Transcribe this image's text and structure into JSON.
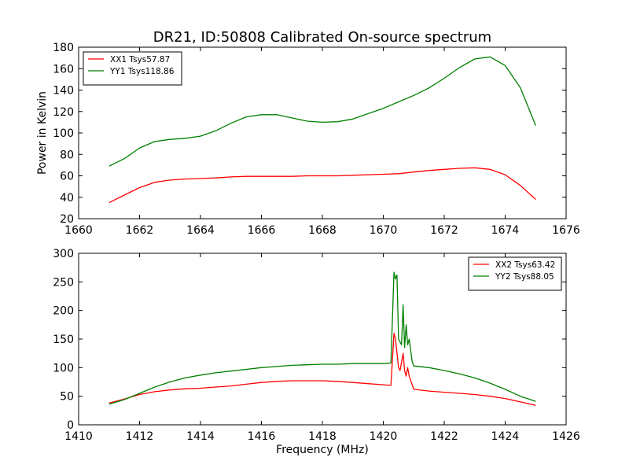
{
  "title": "DR21, ID:50808 Calibrated On-source spectrum",
  "chart_data": [
    {
      "type": "line",
      "xlim": [
        1660,
        1676
      ],
      "ylim": [
        20,
        180
      ],
      "xticks": [
        "1660",
        "1662",
        "1664",
        "1666",
        "1668",
        "1670",
        "1672",
        "1674",
        "1676"
      ],
      "yticks": [
        "20",
        "40",
        "60",
        "80",
        "100",
        "120",
        "140",
        "160",
        "180"
      ],
      "xlabel": "",
      "ylabel": "Power in Kelvin",
      "legend": "top-left",
      "series": [
        {
          "name": "XX1 Tsys57.87",
          "color": "#ff0000",
          "x": [
            1661.0,
            1661.5,
            1662.0,
            1662.5,
            1663.0,
            1663.5,
            1664.0,
            1664.5,
            1665.0,
            1665.5,
            1666.0,
            1666.5,
            1667.0,
            1667.5,
            1668.0,
            1668.5,
            1669.0,
            1669.5,
            1670.0,
            1670.5,
            1671.0,
            1671.5,
            1672.0,
            1672.5,
            1673.0,
            1673.5,
            1674.0,
            1674.5,
            1675.0
          ],
          "y": [
            35,
            42,
            49,
            54,
            56,
            57,
            57.5,
            58,
            59,
            59.5,
            59.5,
            59.5,
            59.5,
            60,
            60,
            60,
            60.5,
            61,
            61.5,
            62,
            63.5,
            65,
            66,
            67,
            67.5,
            66,
            61,
            51,
            38
          ]
        },
        {
          "name": "YY1 Tsys118.86",
          "color": "#008000",
          "x": [
            1661.0,
            1661.5,
            1662.0,
            1662.5,
            1663.0,
            1663.5,
            1664.0,
            1664.5,
            1665.0,
            1665.5,
            1666.0,
            1666.5,
            1667.0,
            1667.5,
            1668.0,
            1668.5,
            1669.0,
            1669.5,
            1670.0,
            1670.5,
            1671.0,
            1671.5,
            1672.0,
            1672.5,
            1673.0,
            1673.5,
            1674.0,
            1674.5,
            1675.0
          ],
          "y": [
            69,
            76,
            86,
            92,
            94,
            95,
            97,
            102,
            109,
            115,
            117,
            117,
            114,
            111,
            110,
            110.5,
            113,
            118,
            123,
            129,
            135,
            142,
            151,
            161,
            169,
            171,
            163,
            142,
            107
          ]
        }
      ]
    },
    {
      "type": "line",
      "xlim": [
        1410,
        1426
      ],
      "ylim": [
        0,
        300
      ],
      "xticks": [
        "1410",
        "1412",
        "1414",
        "1416",
        "1418",
        "1420",
        "1422",
        "1424",
        "1426"
      ],
      "yticks": [
        "0",
        "50",
        "100",
        "150",
        "200",
        "250",
        "300"
      ],
      "xlabel": "Frequency (MHz)",
      "ylabel": "",
      "legend": "top-right",
      "series": [
        {
          "name": "XX2 Tsys63.42",
          "color": "#ff0000",
          "x": [
            1411.0,
            1411.5,
            1412.0,
            1412.5,
            1413.0,
            1413.5,
            1414.0,
            1414.5,
            1415.0,
            1415.5,
            1416.0,
            1416.5,
            1417.0,
            1417.5,
            1418.0,
            1418.5,
            1419.0,
            1419.5,
            1420.0,
            1420.25,
            1420.35,
            1420.4,
            1420.5,
            1420.55,
            1420.65,
            1420.7,
            1420.75,
            1420.8,
            1420.85,
            1420.95,
            1421.0,
            1421.5,
            1422.0,
            1422.5,
            1423.0,
            1423.5,
            1424.0,
            1424.5,
            1425.0
          ],
          "y": [
            38,
            45,
            53,
            58,
            61,
            63,
            64,
            66,
            68,
            71,
            74,
            76,
            77,
            77,
            77,
            76,
            74,
            72,
            70,
            69,
            160,
            150,
            100,
            95,
            125,
            95,
            85,
            100,
            85,
            70,
            62,
            59,
            57,
            55,
            53,
            50,
            46,
            40,
            34
          ]
        },
        {
          "name": "YY2 Tsys88.05",
          "color": "#008000",
          "x": [
            1411.0,
            1411.5,
            1412.0,
            1412.5,
            1413.0,
            1413.5,
            1414.0,
            1414.5,
            1415.0,
            1415.5,
            1416.0,
            1416.5,
            1417.0,
            1417.5,
            1418.0,
            1418.5,
            1419.0,
            1419.5,
            1420.0,
            1420.25,
            1420.35,
            1420.4,
            1420.45,
            1420.5,
            1420.6,
            1420.65,
            1420.7,
            1420.75,
            1420.8,
            1420.85,
            1420.95,
            1421.0,
            1421.5,
            1422.0,
            1422.5,
            1423.0,
            1423.5,
            1424.0,
            1424.5,
            1425.0
          ],
          "y": [
            36,
            44,
            55,
            66,
            75,
            82,
            87,
            91,
            94,
            97,
            100,
            102,
            104,
            105,
            106,
            106,
            107,
            107,
            107,
            108,
            267,
            255,
            262,
            150,
            140,
            210,
            135,
            175,
            140,
            150,
            110,
            103,
            100,
            95,
            89,
            82,
            73,
            62,
            50,
            41
          ]
        }
      ]
    }
  ]
}
